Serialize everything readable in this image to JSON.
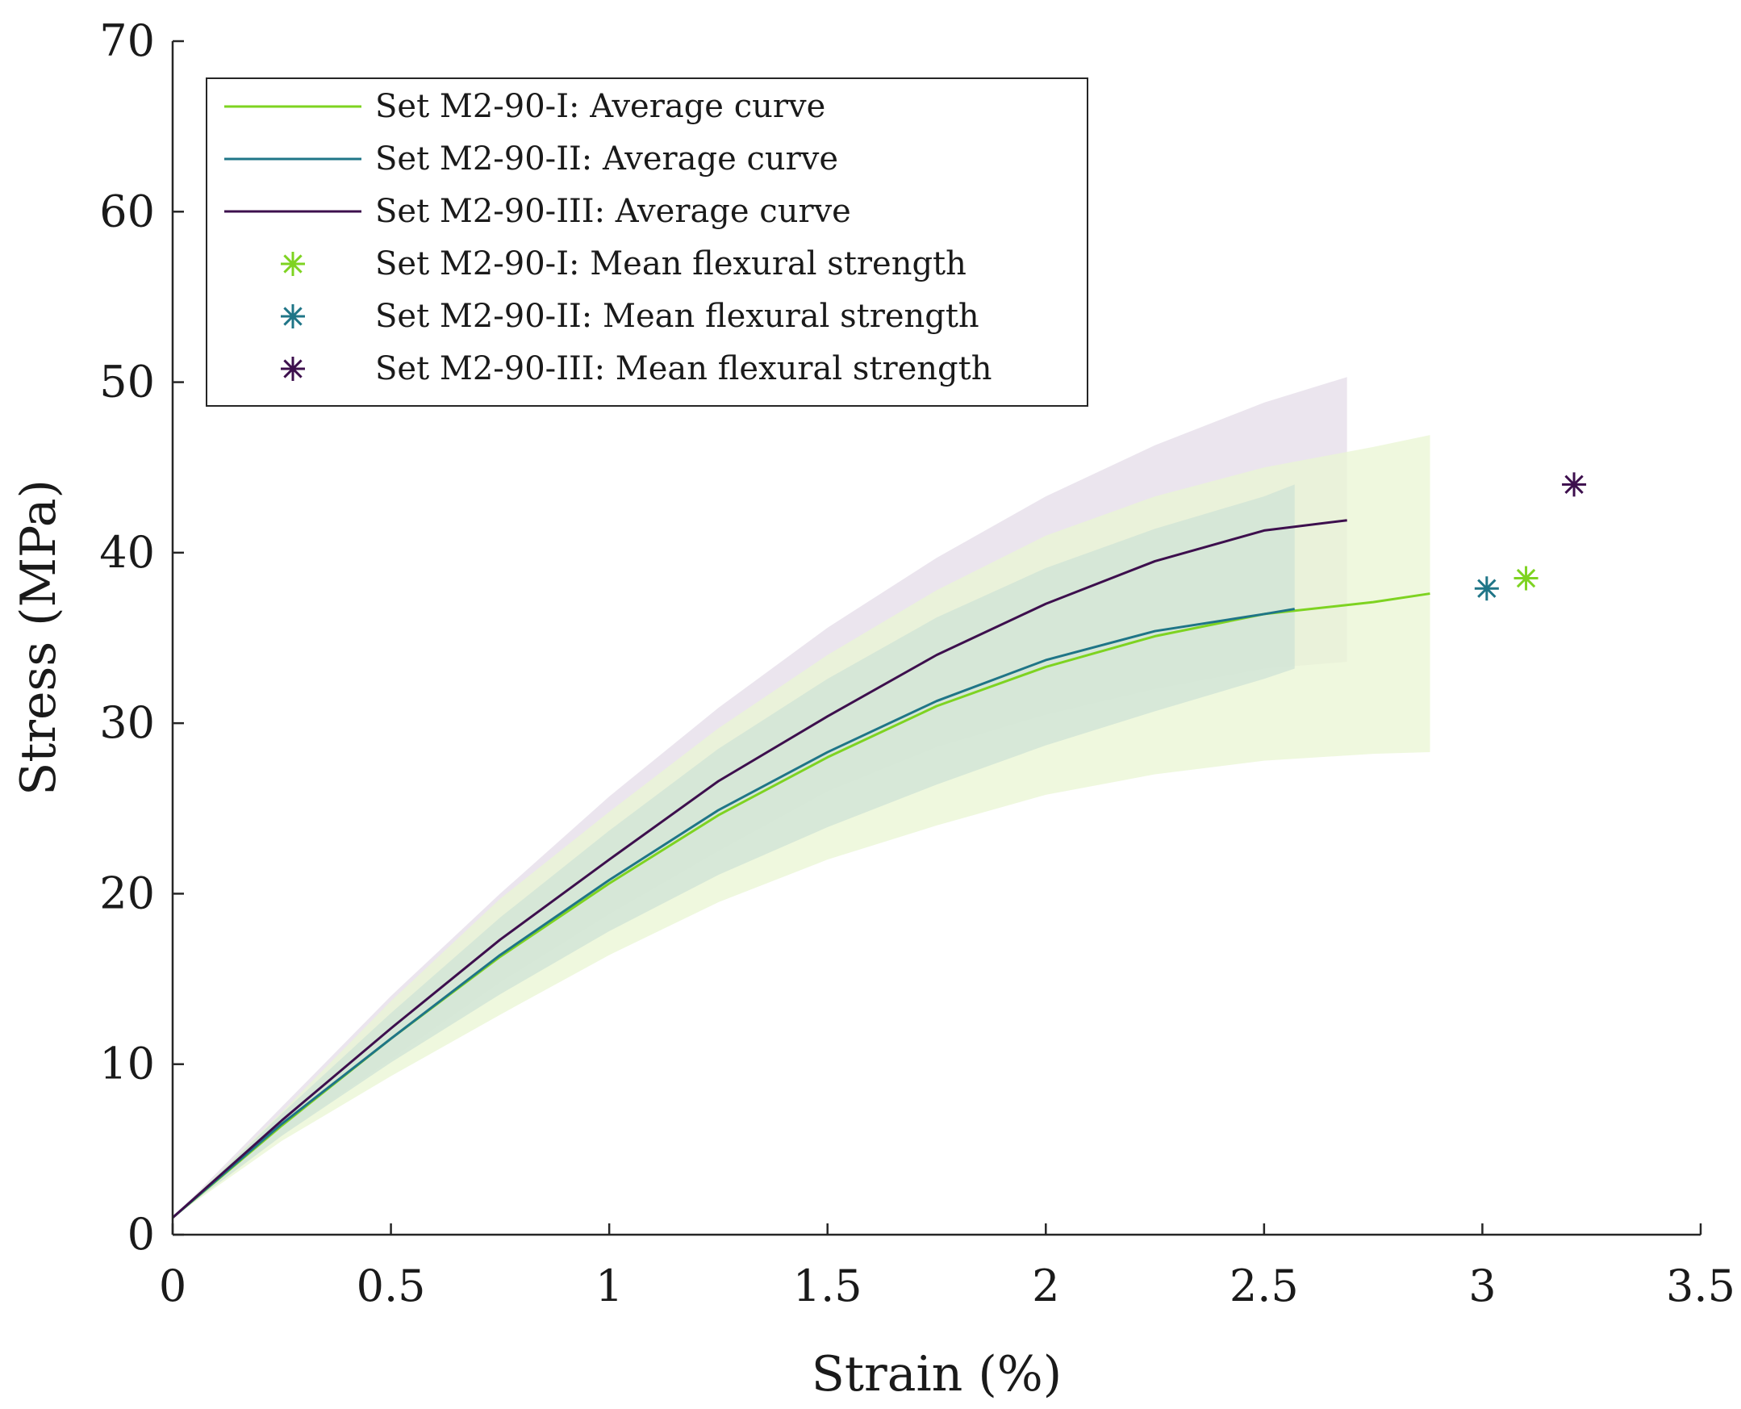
{
  "chart_data": {
    "type": "line",
    "title": "",
    "xlabel": "Strain (%)",
    "ylabel": "Stress (MPa)",
    "xlim": [
      0,
      3.5
    ],
    "ylim": [
      0,
      70
    ],
    "xticks": [
      0,
      0.5,
      1,
      1.5,
      2,
      2.5,
      3,
      3.5
    ],
    "xtick_labels": [
      "0",
      "0.5",
      "1",
      "1.5",
      "2",
      "2.5",
      "3",
      "3.5"
    ],
    "yticks": [
      0,
      10,
      20,
      30,
      40,
      50,
      60,
      70
    ],
    "ytick_labels": [
      "0",
      "10",
      "20",
      "30",
      "40",
      "50",
      "60",
      "70"
    ],
    "grid": false,
    "legend_position": "top-left",
    "series": [
      {
        "name": "Set M2-90-I: Average curve",
        "color": "#7ed321",
        "band_color": "#e9f6d3",
        "x": [
          0,
          0.25,
          0.5,
          0.75,
          1.0,
          1.25,
          1.5,
          1.75,
          2.0,
          2.25,
          2.5,
          2.75,
          2.88
        ],
        "y": [
          1,
          6.4,
          11.5,
          16.3,
          20.6,
          24.6,
          28.0,
          31.0,
          33.3,
          35.1,
          36.4,
          37.1,
          37.6
        ],
        "lower": [
          1,
          5.5,
          9.3,
          12.9,
          16.4,
          19.5,
          22.0,
          24.0,
          25.8,
          27.0,
          27.8,
          28.2,
          28.3
        ],
        "upper": [
          1,
          7.2,
          13.7,
          19.7,
          24.8,
          29.7,
          34.0,
          37.8,
          41.0,
          43.3,
          45.0,
          46.2,
          46.9
        ]
      },
      {
        "name": "Set M2-90-II: Average curve",
        "color": "#1f7587",
        "band_color": "#cfe3d6",
        "x": [
          0,
          0.25,
          0.5,
          0.75,
          1.0,
          1.25,
          1.5,
          1.75,
          2.0,
          2.25,
          2.5,
          2.57
        ],
        "y": [
          1,
          6.5,
          11.5,
          16.4,
          20.8,
          24.9,
          28.3,
          31.3,
          33.7,
          35.4,
          36.4,
          36.7
        ],
        "lower": [
          1,
          5.8,
          10.1,
          14.1,
          17.8,
          21.1,
          23.9,
          26.4,
          28.7,
          30.7,
          32.6,
          33.2
        ],
        "upper": [
          1,
          7.1,
          13.0,
          18.6,
          23.7,
          28.5,
          32.6,
          36.2,
          39.1,
          41.4,
          43.3,
          44.0
        ]
      },
      {
        "name": "Set M2-90-III: Average curve",
        "color": "#3d0f4d",
        "band_color": "#e4dce8",
        "x": [
          0,
          0.25,
          0.5,
          0.75,
          1.0,
          1.25,
          1.5,
          1.75,
          2.0,
          2.25,
          2.5,
          2.69
        ],
        "y": [
          1,
          6.7,
          12.1,
          17.3,
          22.0,
          26.6,
          30.4,
          34.0,
          37.0,
          39.5,
          41.3,
          41.9
        ],
        "lower": [
          1,
          5.8,
          10.3,
          14.8,
          18.8,
          22.5,
          26.0,
          28.6,
          30.5,
          32.0,
          33.2,
          33.6
        ],
        "upper": [
          1,
          7.5,
          14.0,
          20.0,
          25.7,
          30.9,
          35.6,
          39.7,
          43.3,
          46.3,
          48.8,
          50.3
        ]
      }
    ],
    "markers": [
      {
        "name": "Set M2-90-I: Mean flexural strength",
        "x": 3.1,
        "y": 38.5,
        "color": "#7ed321"
      },
      {
        "name": "Set M2-90-II: Mean flexural strength",
        "x": 3.01,
        "y": 37.9,
        "color": "#1f7587"
      },
      {
        "name": "Set M2-90-III: Mean flexural strength",
        "x": 3.21,
        "y": 44.0,
        "color": "#3d0f4d"
      }
    ]
  }
}
